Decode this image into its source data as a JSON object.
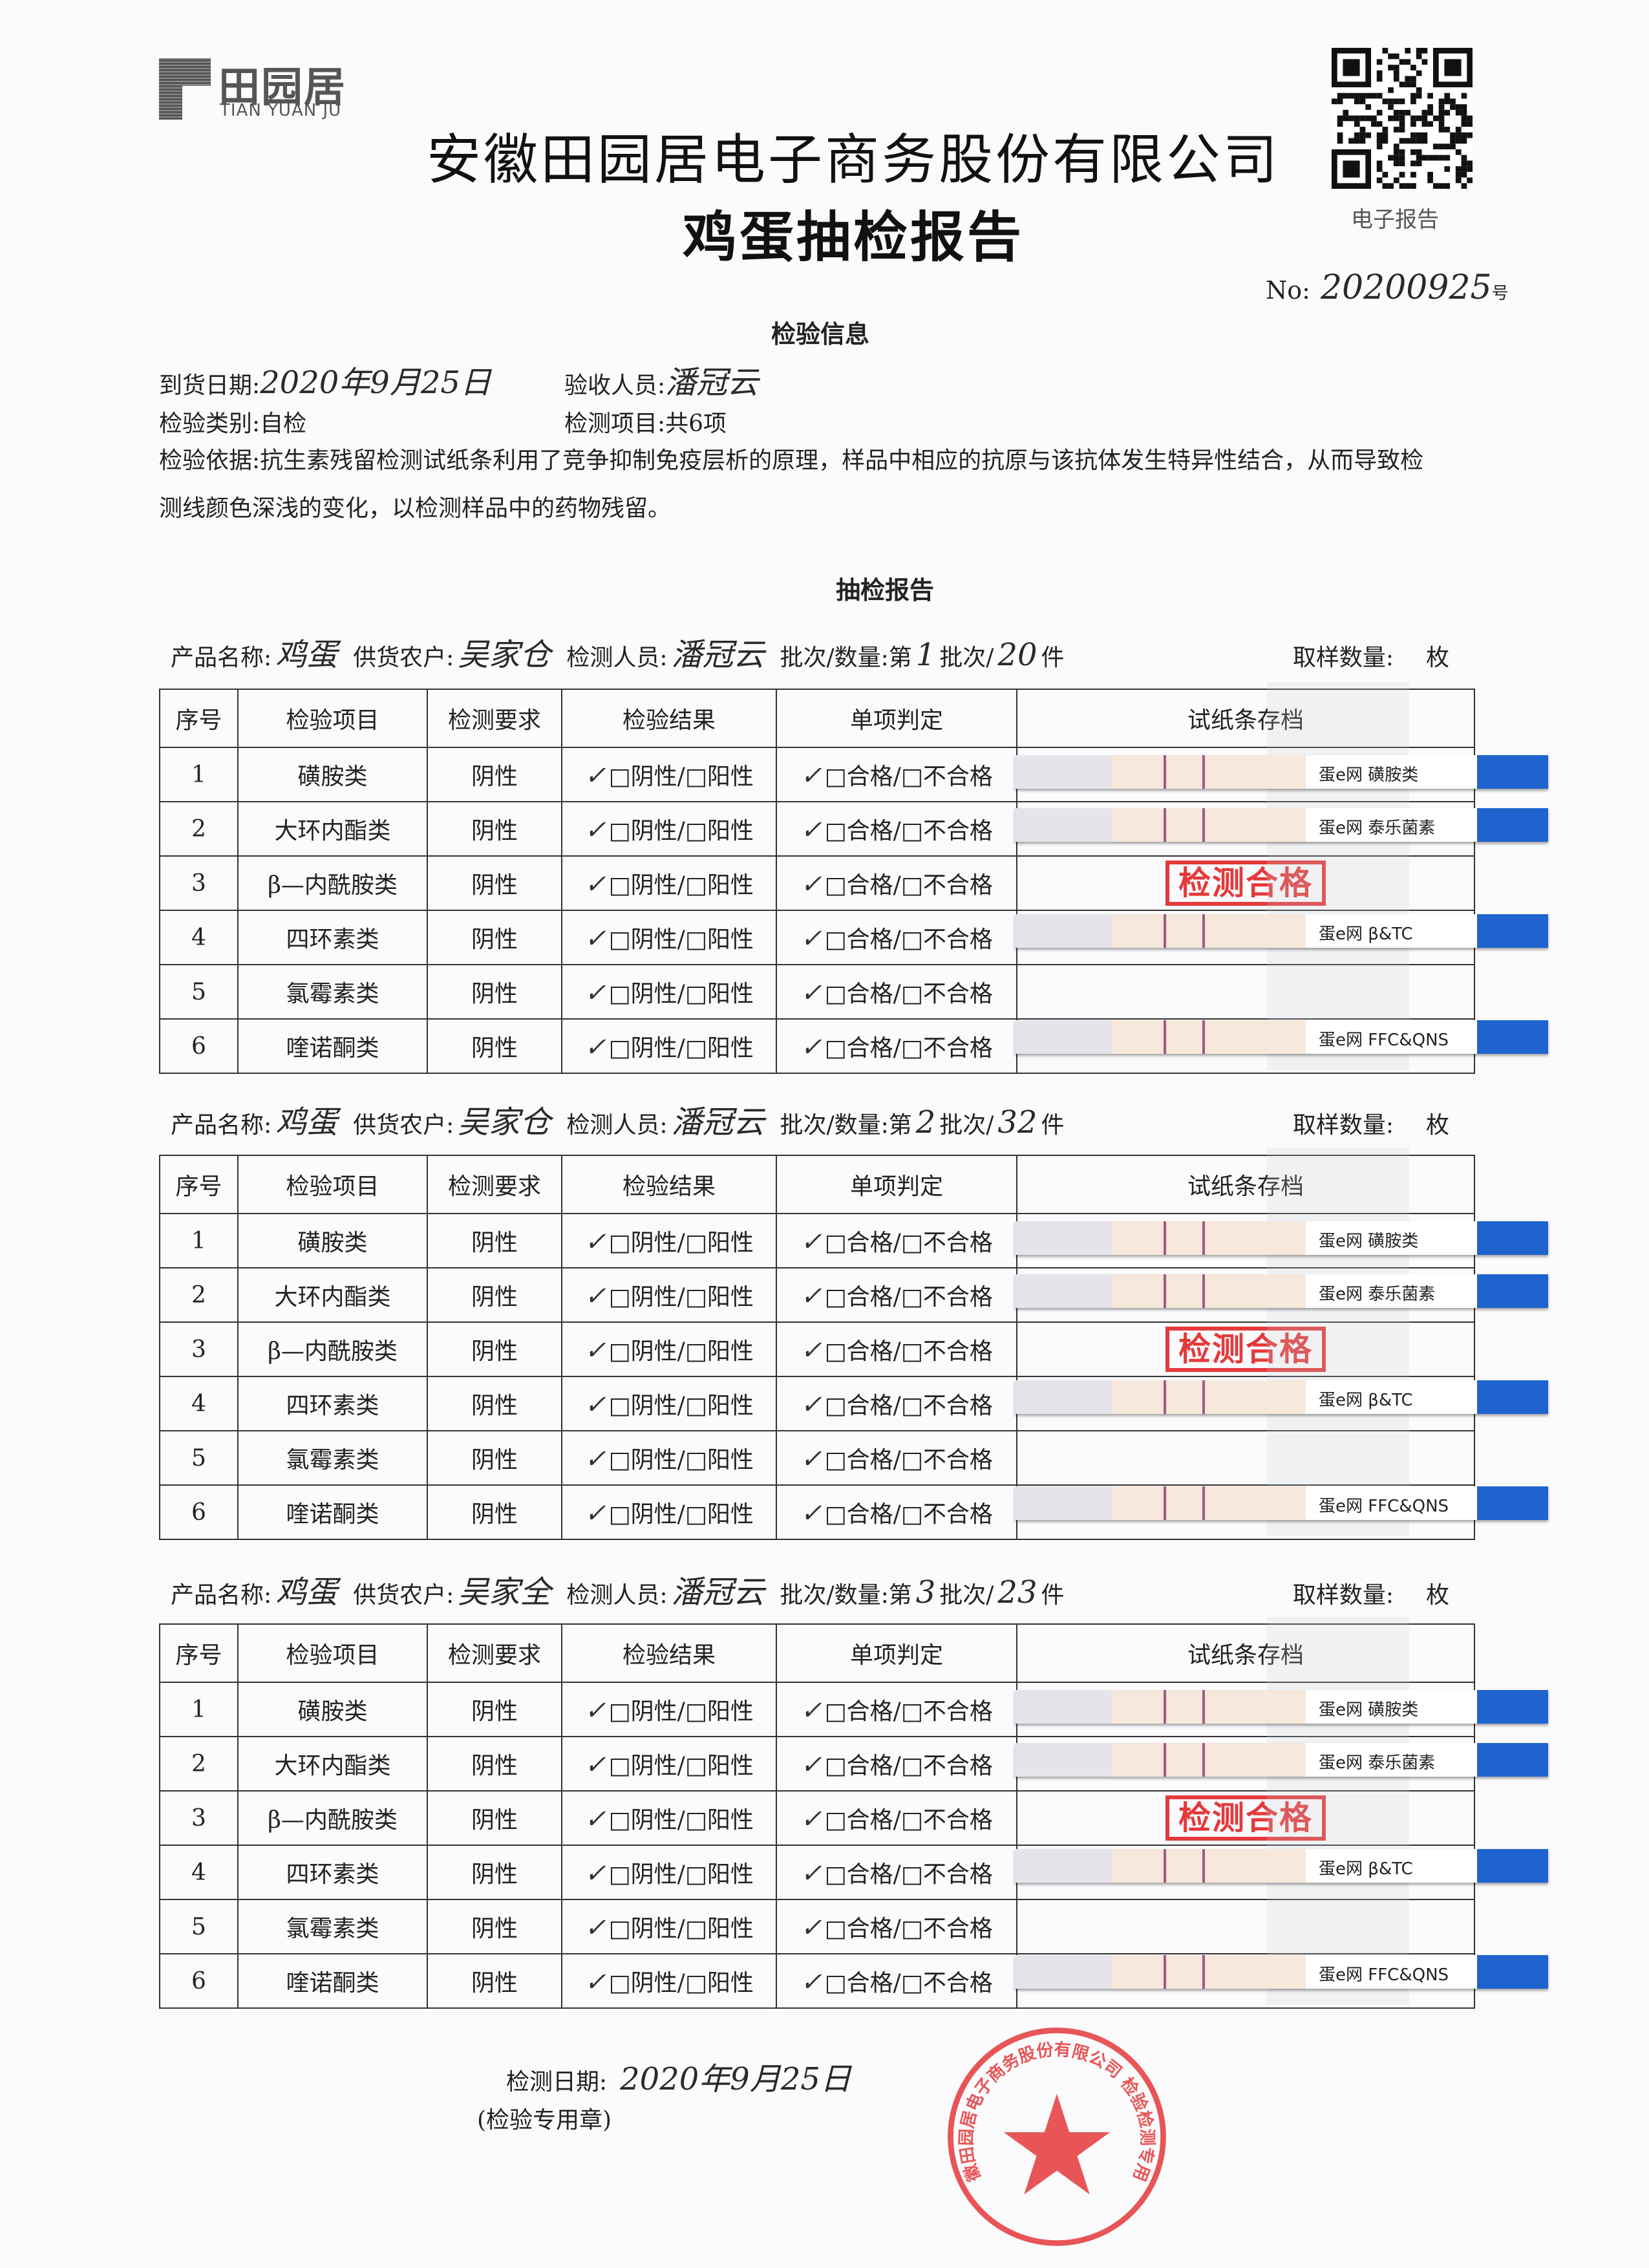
{
  "header": {
    "logo_cn": "田园居",
    "logo_en": "TIAN YUAN JU",
    "company": "安徽田园居电子商务股份有限公司",
    "report_title": "鸡蛋抽检报告",
    "qr_label": "电子报告",
    "no_label": "No:",
    "no_value": "20200925",
    "no_suffix": "号"
  },
  "info": {
    "section_title": "检验信息",
    "arrival_date_label": "到货日期:",
    "arrival_date": "2020年9月25日",
    "receiver_label": "验收人员:",
    "receiver": "潘冠云",
    "category_label": "检验类别:",
    "category": "自检",
    "items_label": "检测项目:",
    "items": "共6项",
    "basis_line1": "检验依据:抗生素残留检测试纸条利用了竞争抑制免疫层析的原理，样品中相应的抗原与该抗体发生特异性结合，从而导致检",
    "basis_line2": "测线颜色深浅的变化，以检测样品中的药物残留。"
  },
  "report_title": "抽检报告",
  "labels": {
    "product": "产品名称:",
    "supplier": "供货农户:",
    "inspector": "检测人员:",
    "batch_prefix": "批次/数量:第",
    "batch_mid": "批次/",
    "batch_unit": "件",
    "sample": "取样数量:",
    "sample_unit": "枚"
  },
  "columns": [
    "序号",
    "检验项目",
    "检测要求",
    "检验结果",
    "单项判定",
    "试纸条存档"
  ],
  "stamp_text": "检测合格",
  "batches": [
    {
      "product": "鸡蛋",
      "supplier": "吴家仓",
      "inspector": "潘冠云",
      "batch": "1",
      "quantity": "20",
      "rows": [
        {
          "no": "1",
          "item": "磺胺类",
          "requirement": "阴性",
          "result": "□阴性/□阳性",
          "judgement": "□合格/□不合格",
          "result_checked": "阴性",
          "judgement_checked": "合格"
        },
        {
          "no": "2",
          "item": "大环内酯类",
          "requirement": "阴性",
          "result": "□阴性/□阳性",
          "judgement": "□合格/□不合格",
          "result_checked": "阴性",
          "judgement_checked": "合格"
        },
        {
          "no": "3",
          "item": "β—内酰胺类",
          "requirement": "阴性",
          "result": "□阴性/□阳性",
          "judgement": "□合格/□不合格",
          "result_checked": "阴性",
          "judgement_checked": "合格"
        },
        {
          "no": "4",
          "item": "四环素类",
          "requirement": "阴性",
          "result": "□阴性/□阳性",
          "judgement": "□合格/□不合格",
          "result_checked": "阴性",
          "judgement_checked": "合格"
        },
        {
          "no": "5",
          "item": "氯霉素类",
          "requirement": "阴性",
          "result": "□阴性/□阳性",
          "judgement": "□合格/□不合格",
          "result_checked": "阴性",
          "judgement_checked": "合格"
        },
        {
          "no": "6",
          "item": "喹诺酮类",
          "requirement": "阴性",
          "result": "□阴性/□阳性",
          "judgement": "□合格/□不合格",
          "result_checked": "阴性",
          "judgement_checked": "合格"
        }
      ],
      "strips": [
        "蛋e网 磺胺类",
        "蛋e网 泰乐菌素",
        "蛋e网 β&TC",
        "蛋e网 FFC&QNS"
      ]
    },
    {
      "product": "鸡蛋",
      "supplier": "吴家仓",
      "inspector": "潘冠云",
      "batch": "2",
      "quantity": "32",
      "rows": [
        {
          "no": "1",
          "item": "磺胺类",
          "requirement": "阴性",
          "result": "□阴性/□阳性",
          "judgement": "□合格/□不合格",
          "result_checked": "阴性",
          "judgement_checked": "合格"
        },
        {
          "no": "2",
          "item": "大环内酯类",
          "requirement": "阴性",
          "result": "□阴性/□阳性",
          "judgement": "□合格/□不合格",
          "result_checked": "阴性",
          "judgement_checked": "合格"
        },
        {
          "no": "3",
          "item": "β—内酰胺类",
          "requirement": "阴性",
          "result": "□阴性/□阳性",
          "judgement": "□合格/□不合格",
          "result_checked": "阴性",
          "judgement_checked": "合格"
        },
        {
          "no": "4",
          "item": "四环素类",
          "requirement": "阴性",
          "result": "□阴性/□阳性",
          "judgement": "□合格/□不合格",
          "result_checked": "阴性",
          "judgement_checked": "合格"
        },
        {
          "no": "5",
          "item": "氯霉素类",
          "requirement": "阴性",
          "result": "□阴性/□阳性",
          "judgement": "□合格/□不合格",
          "result_checked": "阴性",
          "judgement_checked": "合格"
        },
        {
          "no": "6",
          "item": "喹诺酮类",
          "requirement": "阴性",
          "result": "□阴性/□阳性",
          "judgement": "□合格/□不合格",
          "result_checked": "阴性",
          "judgement_checked": "合格"
        }
      ],
      "strips": [
        "蛋e网 磺胺类",
        "蛋e网 泰乐菌素",
        "蛋e网 β&TC",
        "蛋e网 FFC&QNS"
      ]
    },
    {
      "product": "鸡蛋",
      "supplier": "吴家全",
      "inspector": "潘冠云",
      "batch": "3",
      "quantity": "23",
      "rows": [
        {
          "no": "1",
          "item": "磺胺类",
          "requirement": "阴性",
          "result": "□阴性/□阳性",
          "judgement": "□合格/□不合格",
          "result_checked": "阴性",
          "judgement_checked": "合格"
        },
        {
          "no": "2",
          "item": "大环内酯类",
          "requirement": "阴性",
          "result": "□阴性/□阳性",
          "judgement": "□合格/□不合格",
          "result_checked": "阴性",
          "judgement_checked": "合格"
        },
        {
          "no": "3",
          "item": "β—内酰胺类",
          "requirement": "阴性",
          "result": "□阴性/□阳性",
          "judgement": "□合格/□不合格",
          "result_checked": "阴性",
          "judgement_checked": "合格"
        },
        {
          "no": "4",
          "item": "四环素类",
          "requirement": "阴性",
          "result": "□阴性/□阳性",
          "judgement": "□合格/□不合格",
          "result_checked": "阴性",
          "judgement_checked": "合格"
        },
        {
          "no": "5",
          "item": "氯霉素类",
          "requirement": "阴性",
          "result": "□阴性/□阳性",
          "judgement": "□合格/□不合格",
          "result_checked": "阴性",
          "judgement_checked": "合格"
        },
        {
          "no": "6",
          "item": "喹诺酮类",
          "requirement": "阴性",
          "result": "□阴性/□阳性",
          "judgement": "□合格/□不合格",
          "result_checked": "阴性",
          "judgement_checked": "合格"
        }
      ],
      "strips": [
        "蛋e网 磺胺类",
        "蛋e网 泰乐菌素",
        "蛋e网 β&TC",
        "蛋e网 FFC&QNS"
      ]
    }
  ],
  "footer": {
    "date_label": "检测日期:",
    "date": "2020年9月25日",
    "seal_label": "(检验专用章)",
    "seal_text": "安徽田园居电子商务股份有限公司 检验检测专用章"
  },
  "colors": {
    "stamp_red": "#e5393a",
    "strip_blue": "#1f63cf",
    "text": "#222222"
  }
}
